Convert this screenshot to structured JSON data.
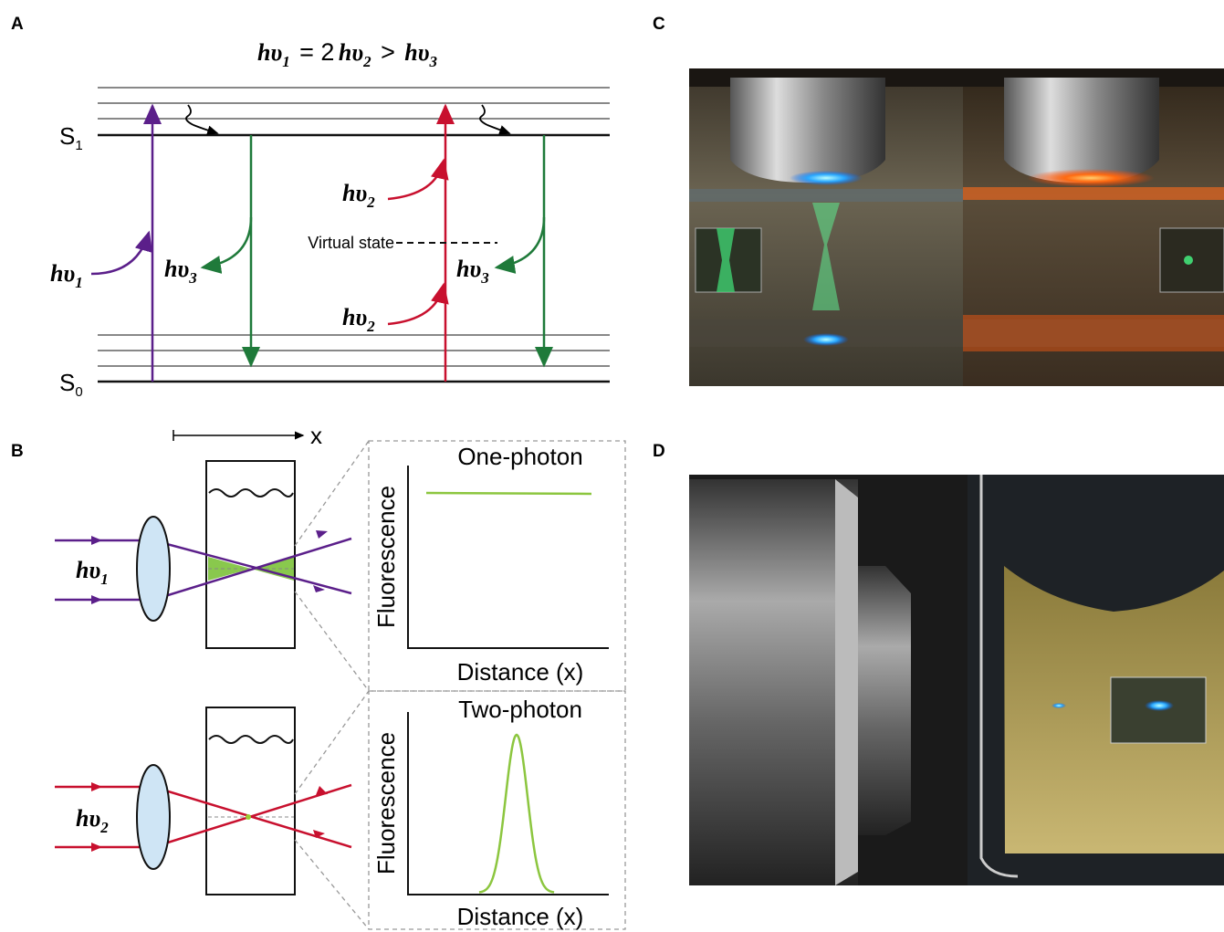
{
  "panel_a": {
    "label": "A",
    "equation": {
      "lhs": {
        "base": "hυ",
        "sub": "1"
      },
      "equals": "= 2",
      "mid": {
        "base": "hυ",
        "sub": "2"
      },
      "greater": ">",
      "rhs": {
        "base": "hυ",
        "sub": "3"
      }
    },
    "s1": {
      "base": "S",
      "sub": "1"
    },
    "s0": {
      "base": "S",
      "sub": "0"
    },
    "photons": [
      {
        "base": "hυ",
        "sub": "1"
      },
      {
        "base": "hυ",
        "sub": "3"
      },
      {
        "base": "hυ",
        "sub": "2"
      },
      {
        "base": "hυ",
        "sub": "2"
      },
      {
        "base": "hυ",
        "sub": "3"
      }
    ],
    "virtual_state": "Virtual state"
  },
  "panel_b": {
    "label": "B",
    "axis_symbol": "x",
    "one_photon": {
      "beam": {
        "base": "hυ",
        "sub": "1"
      },
      "title": "One-photon",
      "y_label": "Fluorescence",
      "x_label": "Distance (x)"
    },
    "two_photon": {
      "beam": {
        "base": "hυ",
        "sub": "2"
      },
      "title": "Two-photon",
      "y_label": "Fluorescence",
      "x_label": "Distance (x)"
    }
  },
  "panel_c": {
    "label": "C"
  },
  "panel_d": {
    "label": "D"
  }
}
